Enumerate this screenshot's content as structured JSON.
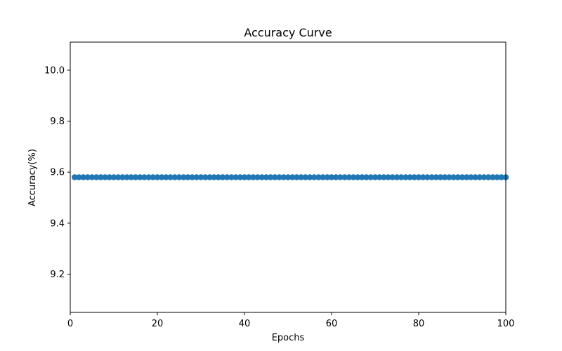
{
  "chart_data": {
    "type": "scatter",
    "title": "Accuracy Curve",
    "xlabel": "Epochs",
    "ylabel": "Accuracy(%)",
    "xlim": [
      0,
      100
    ],
    "ylim": [
      9.05,
      10.11
    ],
    "x_ticks": [
      0,
      20,
      40,
      60,
      80,
      100
    ],
    "y_ticks": [
      9.2,
      9.4,
      9.6,
      9.8,
      10.0
    ],
    "x_tick_labels": [
      "0",
      "20",
      "40",
      "60",
      "80",
      "100"
    ],
    "y_tick_labels": [
      "9.2",
      "9.4",
      "9.6",
      "9.8",
      "10.0"
    ],
    "grid": false,
    "series": [
      {
        "x": [
          1,
          2,
          3,
          4,
          5,
          6,
          7,
          8,
          9,
          10,
          11,
          12,
          13,
          14,
          15,
          16,
          17,
          18,
          19,
          20,
          21,
          22,
          23,
          24,
          25,
          26,
          27,
          28,
          29,
          30,
          31,
          32,
          33,
          34,
          35,
          36,
          37,
          38,
          39,
          40,
          41,
          42,
          43,
          44,
          45,
          46,
          47,
          48,
          49,
          50,
          51,
          52,
          53,
          54,
          55,
          56,
          57,
          58,
          59,
          60,
          61,
          62,
          63,
          64,
          65,
          66,
          67,
          68,
          69,
          70,
          71,
          72,
          73,
          74,
          75,
          76,
          77,
          78,
          79,
          80,
          81,
          82,
          83,
          84,
          85,
          86,
          87,
          88,
          89,
          90,
          91,
          92,
          93,
          94,
          95,
          96,
          97,
          98,
          99,
          100
        ],
        "y": [
          9.58,
          9.58,
          9.58,
          9.58,
          9.58,
          9.58,
          9.58,
          9.58,
          9.58,
          9.58,
          9.58,
          9.58,
          9.58,
          9.58,
          9.58,
          9.58,
          9.58,
          9.58,
          9.58,
          9.58,
          9.58,
          9.58,
          9.58,
          9.58,
          9.58,
          9.58,
          9.58,
          9.58,
          9.58,
          9.58,
          9.58,
          9.58,
          9.58,
          9.58,
          9.58,
          9.58,
          9.58,
          9.58,
          9.58,
          9.58,
          9.58,
          9.58,
          9.58,
          9.58,
          9.58,
          9.58,
          9.58,
          9.58,
          9.58,
          9.58,
          9.58,
          9.58,
          9.58,
          9.58,
          9.58,
          9.58,
          9.58,
          9.58,
          9.58,
          9.58,
          9.58,
          9.58,
          9.58,
          9.58,
          9.58,
          9.58,
          9.58,
          9.58,
          9.58,
          9.58,
          9.58,
          9.58,
          9.58,
          9.58,
          9.58,
          9.58,
          9.58,
          9.58,
          9.58,
          9.58,
          9.58,
          9.58,
          9.58,
          9.58,
          9.58,
          9.58,
          9.58,
          9.58,
          9.58,
          9.58,
          9.58,
          9.58,
          9.58,
          9.58,
          9.58,
          9.58,
          9.58,
          9.58,
          9.58,
          9.58
        ],
        "color": "#1f77b4"
      }
    ]
  }
}
